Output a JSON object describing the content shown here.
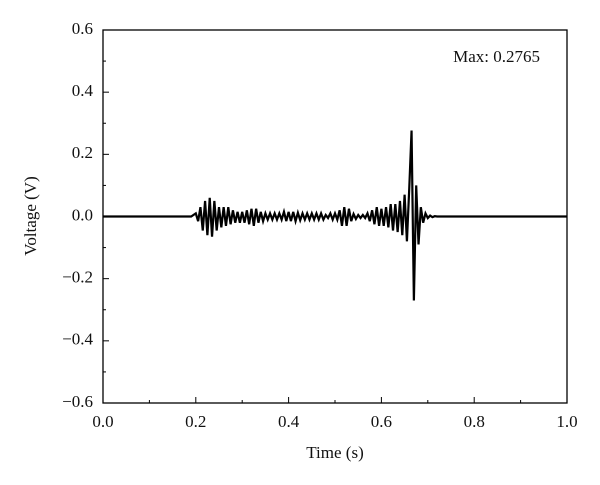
{
  "chart_data": {
    "type": "line",
    "annotation": "Max: 0.2765",
    "xlabel": "Time (s)",
    "ylabel": "Voltage (V)",
    "xlim": [
      0,
      1
    ],
    "ylim": [
      -0.6,
      0.6
    ],
    "xticks": [
      {
        "value": 0,
        "label": "0.0"
      },
      0.2,
      0.4,
      0.6,
      0.8,
      {
        "value": 1,
        "label": "1.0"
      }
    ],
    "yticks": [
      {
        "value": -0.6,
        "label": "−0.6"
      },
      {
        "value": -0.4,
        "label": "−0.4"
      },
      {
        "value": -0.2,
        "label": "−0.2"
      },
      {
        "value": 0,
        "label": "0.0"
      },
      0.2,
      0.4,
      0.6
    ],
    "color": "#000000",
    "x": [
      0,
      0.1,
      0.19,
      0.2,
      0.205,
      0.21,
      0.215,
      0.22,
      0.225,
      0.23,
      0.235,
      0.24,
      0.245,
      0.25,
      0.255,
      0.26,
      0.265,
      0.27,
      0.275,
      0.28,
      0.285,
      0.29,
      0.295,
      0.3,
      0.305,
      0.31,
      0.315,
      0.32,
      0.325,
      0.33,
      0.335,
      0.34,
      0.345,
      0.35,
      0.355,
      0.36,
      0.365,
      0.37,
      0.375,
      0.38,
      0.385,
      0.39,
      0.395,
      0.4,
      0.405,
      0.41,
      0.415,
      0.42,
      0.425,
      0.43,
      0.435,
      0.44,
      0.445,
      0.45,
      0.455,
      0.46,
      0.465,
      0.47,
      0.475,
      0.48,
      0.485,
      0.49,
      0.495,
      0.5,
      0.505,
      0.51,
      0.515,
      0.52,
      0.525,
      0.53,
      0.535,
      0.54,
      0.545,
      0.55,
      0.555,
      0.56,
      0.565,
      0.57,
      0.575,
      0.58,
      0.585,
      0.59,
      0.595,
      0.6,
      0.605,
      0.61,
      0.615,
      0.62,
      0.625,
      0.63,
      0.635,
      0.64,
      0.645,
      0.65,
      0.655,
      0.66,
      0.665,
      0.67,
      0.675,
      0.68,
      0.685,
      0.69,
      0.695,
      0.7,
      0.705,
      0.71,
      0.715,
      0.72,
      0.75,
      0.8,
      0.9,
      1
    ],
    "values": [
      0,
      0,
      0,
      0.01,
      -0.015,
      0.03,
      -0.045,
      0.05,
      -0.06,
      0.06,
      -0.065,
      0.05,
      -0.045,
      0.03,
      -0.035,
      0.03,
      -0.03,
      0.03,
      -0.025,
      0.02,
      -0.02,
      0.015,
      -0.02,
      0.015,
      -0.02,
      0.02,
      -0.025,
      0.025,
      -0.03,
      0.025,
      -0.02,
      0.015,
      -0.015,
      0.01,
      -0.01,
      0.01,
      -0.01,
      0.01,
      -0.01,
      0.01,
      -0.01,
      0.015,
      -0.015,
      0.015,
      -0.015,
      0.015,
      -0.015,
      0.012,
      -0.012,
      0.01,
      -0.01,
      0.01,
      -0.01,
      0.01,
      -0.01,
      0.01,
      -0.01,
      0.01,
      -0.01,
      0.005,
      -0.005,
      0.01,
      -0.01,
      0.01,
      -0.01,
      0.02,
      -0.03,
      0.03,
      -0.03,
      0.025,
      -0.015,
      0.008,
      -0.008,
      0.005,
      -0.005,
      0.005,
      -0.005,
      0.01,
      -0.015,
      0.02,
      -0.025,
      0.03,
      -0.03,
      0.025,
      -0.03,
      0.03,
      -0.035,
      0.04,
      -0.045,
      0.04,
      -0.05,
      0.05,
      -0.06,
      0.07,
      -0.08,
      0.09,
      0.2765,
      -0.27,
      0.1,
      -0.09,
      0.03,
      -0.02,
      0.01,
      -0.005,
      0.003,
      -0.002,
      0.001,
      0,
      0,
      0,
      0,
      0
    ]
  }
}
